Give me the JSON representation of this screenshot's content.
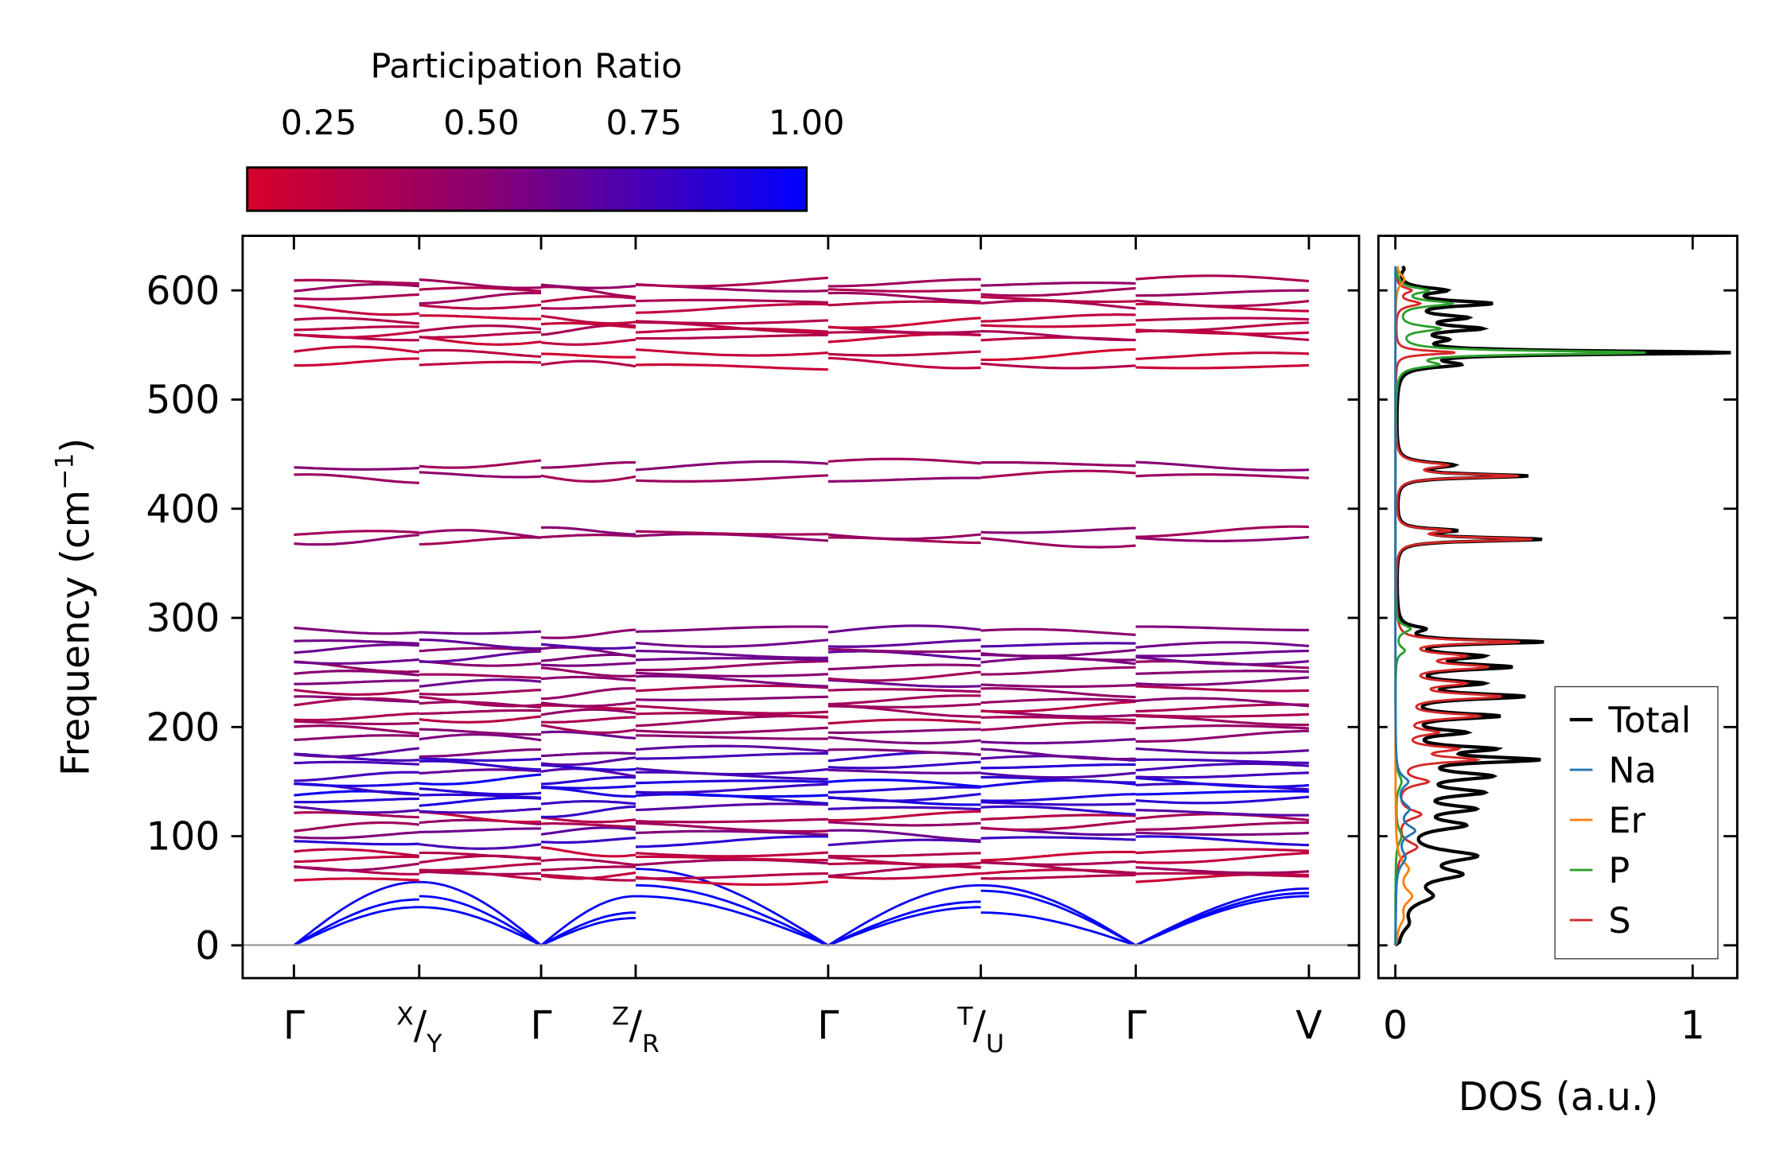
{
  "chart_data": [
    {
      "type": "line",
      "title": "",
      "ylabel": "Frequency (cm⁻¹)",
      "ylabel_base": "Frequency (cm",
      "ylabel_sup": "−1",
      "ylabel_close": ")",
      "ylim": [
        -30,
        650
      ],
      "yticks": [
        0,
        100,
        200,
        300,
        400,
        500,
        600
      ],
      "grid": false,
      "kpoints": [
        {
          "label": "Γ",
          "pos": 0
        },
        {
          "label_sup": "X",
          "label_sub": "Y",
          "pos": 1.1
        },
        {
          "label": "Γ",
          "pos": 2.17
        },
        {
          "label_sup": "Z",
          "label_sub": "R",
          "pos": 3.0
        },
        {
          "label": "Γ",
          "pos": 4.69
        },
        {
          "label_sup": "T",
          "label_sub": "U",
          "pos": 6.03
        },
        {
          "label": "Γ",
          "pos": 7.39
        },
        {
          "label": "V",
          "pos": 8.91
        }
      ],
      "xlim": [
        -0.45,
        9.35
      ],
      "colorbar": {
        "label": "Participation Ratio",
        "range": [
          0.14,
          1.0
        ],
        "ticks": [
          "0.25",
          "0.50",
          "0.75",
          "1.00"
        ],
        "tick_values": [
          0.25,
          0.5,
          0.75,
          1.0
        ],
        "colors": [
          {
            "v": 0.14,
            "hex": "#d7002a"
          },
          {
            "v": 0.5,
            "hex": "#8a0070"
          },
          {
            "v": 1.0,
            "hex": "#0000ff"
          }
        ],
        "placement": "top-left"
      },
      "acoustic_bands": [
        {
          "pr": 1.0,
          "segments": [
            [
              0,
              35
            ],
            [
              35,
              0
            ],
            [
              0,
              25
            ],
            [
              55,
              0
            ],
            [
              0,
              35
            ],
            [
              30,
              0
            ],
            [
              0,
              45
            ]
          ]
        },
        {
          "pr": 1.0,
          "segments": [
            [
              0,
              42
            ],
            [
              45,
              0
            ],
            [
              0,
              30
            ],
            [
              45,
              0
            ],
            [
              0,
              40
            ],
            [
              50,
              0
            ],
            [
              0,
              48
            ]
          ]
        },
        {
          "pr": 0.95,
          "segments": [
            [
              0,
              58
            ],
            [
              58,
              0
            ],
            [
              0,
              45
            ],
            [
              70,
              0
            ],
            [
              0,
              55
            ],
            [
              55,
              0
            ],
            [
              0,
              52
            ]
          ]
        }
      ],
      "optical_bands": [
        {
          "f": 62,
          "pr": 0.25
        },
        {
          "f": 66,
          "pr": 0.3
        },
        {
          "f": 72,
          "pr": 0.35
        },
        {
          "f": 78,
          "pr": 0.3
        },
        {
          "f": 84,
          "pr": 0.25
        },
        {
          "f": 95,
          "pr": 0.8
        },
        {
          "f": 103,
          "pr": 0.6
        },
        {
          "f": 110,
          "pr": 0.4
        },
        {
          "f": 117,
          "pr": 0.3
        },
        {
          "f": 124,
          "pr": 0.75
        },
        {
          "f": 132,
          "pr": 0.85
        },
        {
          "f": 138,
          "pr": 0.9
        },
        {
          "f": 144,
          "pr": 0.85
        },
        {
          "f": 150,
          "pr": 0.9
        },
        {
          "f": 157,
          "pr": 0.7
        },
        {
          "f": 164,
          "pr": 0.8
        },
        {
          "f": 171,
          "pr": 0.75
        },
        {
          "f": 177,
          "pr": 0.6
        },
        {
          "f": 190,
          "pr": 0.55
        },
        {
          "f": 198,
          "pr": 0.45
        },
        {
          "f": 206,
          "pr": 0.35
        },
        {
          "f": 212,
          "pr": 0.4
        },
        {
          "f": 219,
          "pr": 0.35
        },
        {
          "f": 224,
          "pr": 0.45
        },
        {
          "f": 233,
          "pr": 0.4
        },
        {
          "f": 241,
          "pr": 0.55
        },
        {
          "f": 249,
          "pr": 0.45
        },
        {
          "f": 257,
          "pr": 0.5
        },
        {
          "f": 263,
          "pr": 0.6
        },
        {
          "f": 269,
          "pr": 0.55
        },
        {
          "f": 276,
          "pr": 0.65
        },
        {
          "f": 288,
          "pr": 0.55
        },
        {
          "f": 372,
          "pr": 0.42
        },
        {
          "f": 378,
          "pr": 0.45
        },
        {
          "f": 429,
          "pr": 0.42
        },
        {
          "f": 440,
          "pr": 0.45
        },
        {
          "f": 532,
          "pr": 0.25
        },
        {
          "f": 542,
          "pr": 0.22
        },
        {
          "f": 556,
          "pr": 0.25
        },
        {
          "f": 561,
          "pr": 0.3
        },
        {
          "f": 566,
          "pr": 0.28
        },
        {
          "f": 573,
          "pr": 0.25
        },
        {
          "f": 585,
          "pr": 0.3
        },
        {
          "f": 592,
          "pr": 0.35
        },
        {
          "f": 600,
          "pr": 0.38
        },
        {
          "f": 607,
          "pr": 0.4
        }
      ]
    },
    {
      "type": "line",
      "xlabel": "DOS (a.u.)",
      "xticks": [
        "0",
        "1"
      ],
      "xtick_values": [
        0,
        1
      ],
      "xlim": [
        -0.057,
        1.15
      ],
      "ylim": [
        -30,
        650
      ],
      "legend": {
        "placement": "lower-right",
        "entries": [
          "Total",
          "Na",
          "Er",
          "P",
          "S"
        ]
      },
      "series": [
        {
          "name": "Total",
          "color": "#000000",
          "peaks": [
            [
              620,
              0.02,
              4
            ],
            [
              600,
              0.15,
              3
            ],
            [
              588,
              0.3,
              3
            ],
            [
              575,
              0.2,
              3
            ],
            [
              565,
              0.25,
              3
            ],
            [
              555,
              0.12,
              3
            ],
            [
              543,
              1.1,
              2
            ],
            [
              532,
              0.18,
              3
            ],
            [
              440,
              0.18,
              3
            ],
            [
              430,
              0.43,
              2
            ],
            [
              380,
              0.18,
              2
            ],
            [
              372,
              0.48,
              2
            ],
            [
              290,
              0.08,
              3
            ],
            [
              278,
              0.47,
              2
            ],
            [
              265,
              0.25,
              3
            ],
            [
              255,
              0.35,
              3
            ],
            [
              240,
              0.25,
              3
            ],
            [
              228,
              0.4,
              3
            ],
            [
              210,
              0.32,
              3
            ],
            [
              195,
              0.2,
              3
            ],
            [
              180,
              0.28,
              3
            ],
            [
              170,
              0.43,
              3
            ],
            [
              155,
              0.28,
              4
            ],
            [
              140,
              0.25,
              4
            ],
            [
              125,
              0.22,
              4
            ],
            [
              110,
              0.2,
              5
            ],
            [
              82,
              0.24,
              6
            ],
            [
              65,
              0.18,
              6
            ],
            [
              45,
              0.1,
              8
            ],
            [
              20,
              0.03,
              8
            ]
          ]
        },
        {
          "name": "Na",
          "color": "#1f77b4",
          "peaks": [
            [
              150,
              0.04,
              6
            ],
            [
              125,
              0.04,
              6
            ],
            [
              105,
              0.06,
              6
            ],
            [
              80,
              0.03,
              8
            ]
          ]
        },
        {
          "name": "Er",
          "color": "#ff7f0e",
          "peaks": [
            [
              610,
              0.03,
              6
            ],
            [
              70,
              0.04,
              8
            ],
            [
              45,
              0.05,
              8
            ],
            [
              25,
              0.02,
              8
            ]
          ]
        },
        {
          "name": "P",
          "color": "#2ca02c",
          "peaks": [
            [
              600,
              0.1,
              3
            ],
            [
              588,
              0.18,
              3
            ],
            [
              565,
              0.14,
              3
            ],
            [
              543,
              0.83,
              2
            ],
            [
              532,
              0.12,
              3
            ],
            [
              290,
              0.05,
              4
            ],
            [
              270,
              0.03,
              4
            ],
            [
              150,
              0.02,
              8
            ],
            [
              100,
              0.02,
              8
            ]
          ]
        },
        {
          "name": "S",
          "color": "#d62728",
          "peaks": [
            [
              600,
              0.05,
              3
            ],
            [
              588,
              0.08,
              3
            ],
            [
              543,
              0.2,
              2
            ],
            [
              440,
              0.16,
              3
            ],
            [
              430,
              0.4,
              2
            ],
            [
              380,
              0.16,
              2
            ],
            [
              372,
              0.45,
              2
            ],
            [
              278,
              0.4,
              2
            ],
            [
              265,
              0.2,
              3
            ],
            [
              255,
              0.28,
              3
            ],
            [
              240,
              0.2,
              3
            ],
            [
              228,
              0.33,
              3
            ],
            [
              210,
              0.26,
              3
            ],
            [
              195,
              0.12,
              3
            ],
            [
              180,
              0.18,
              3
            ],
            [
              170,
              0.25,
              3
            ],
            [
              150,
              0.1,
              4
            ],
            [
              120,
              0.08,
              5
            ],
            [
              90,
              0.07,
              6
            ]
          ]
        }
      ]
    }
  ]
}
